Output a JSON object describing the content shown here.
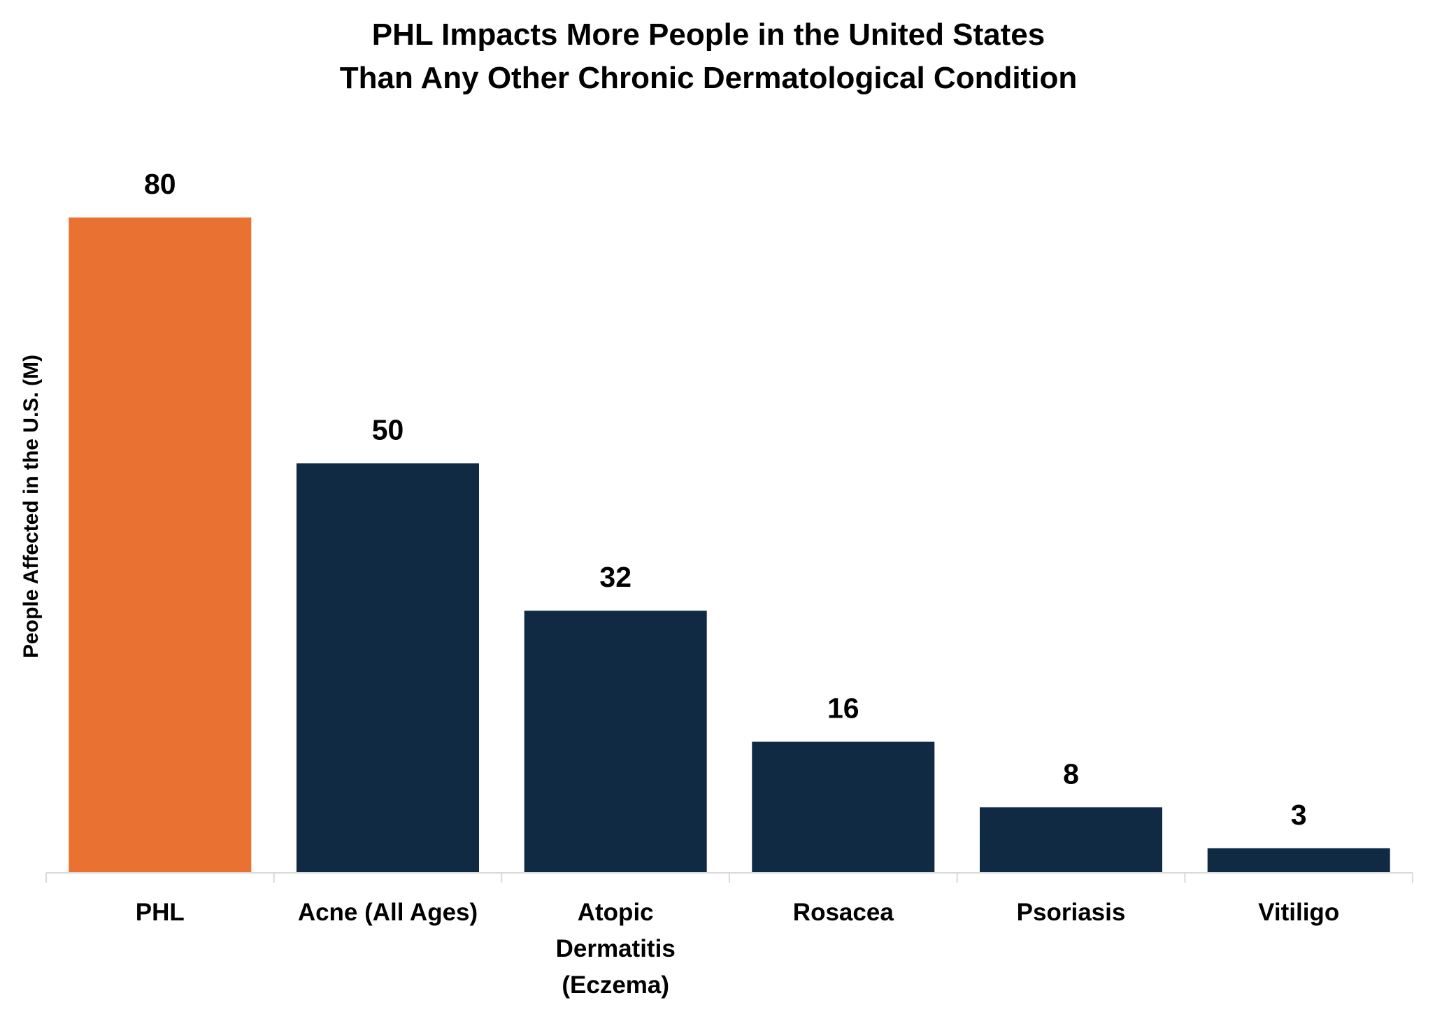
{
  "chart_data": {
    "type": "bar",
    "title": "PHL Impacts More People in the United States",
    "subtitle": "Than Any Other Chronic Dermatological Condition",
    "xlabel": "",
    "ylabel": "People Affected in the  U.S. (M)",
    "categories": [
      [
        "PHL"
      ],
      [
        "Acne (All Ages)"
      ],
      [
        "Atopic",
        "Dermatitis",
        "(Eczema)"
      ],
      [
        "Rosacea"
      ],
      [
        "Psoriasis"
      ],
      [
        "Vitiligo"
      ]
    ],
    "values": [
      80,
      50,
      32,
      16,
      8,
      3
    ],
    "data_labels": [
      "80",
      "50",
      "32",
      "16",
      "8",
      "3"
    ],
    "ylim": [
      0,
      90
    ],
    "grid": false,
    "legend": "none",
    "colors": {
      "highlight": "#E97132",
      "default": "#112A44",
      "axis": "#D9D9D9"
    },
    "highlight_index": 0
  }
}
